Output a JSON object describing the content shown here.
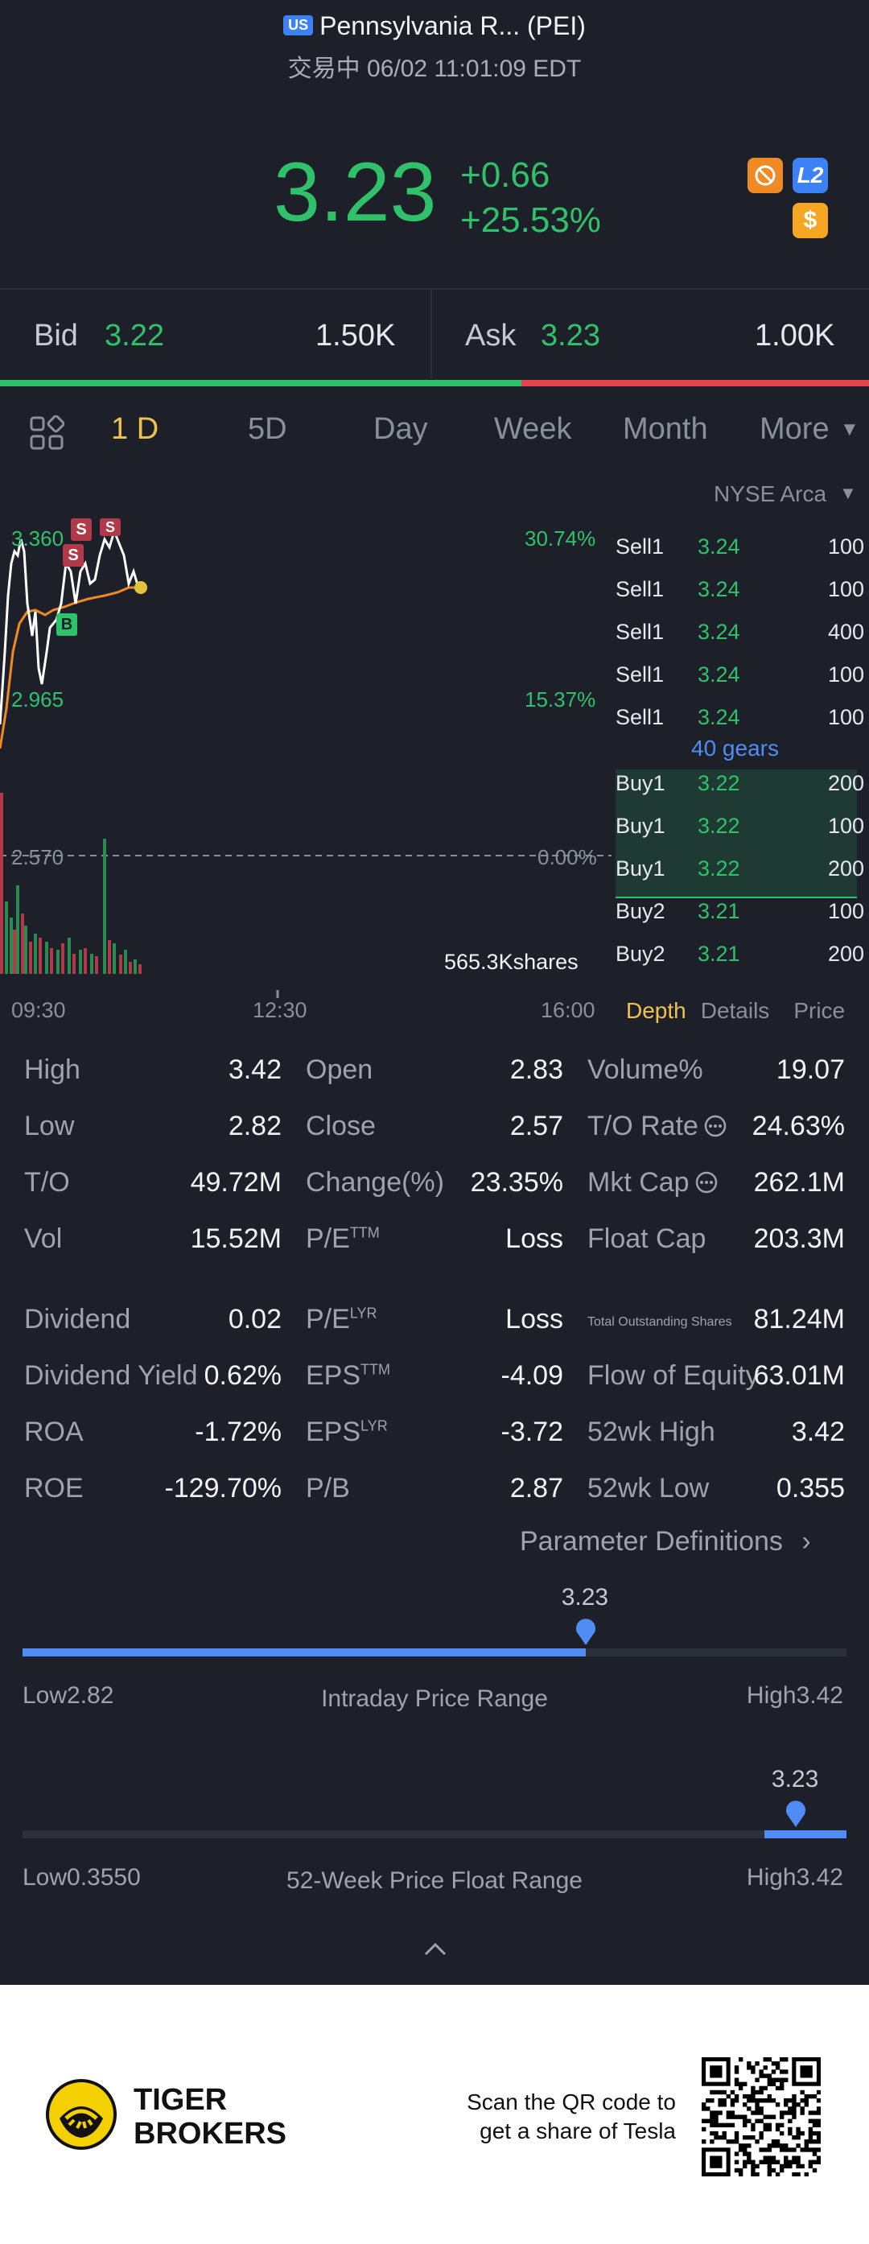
{
  "header": {
    "market_badge": "US",
    "title": "Pennsylvania R... (PEI)",
    "status": "交易中 06/02 11:01:09 EDT"
  },
  "quote": {
    "price": "3.23",
    "change": "+0.66",
    "change_pct": "+25.53%",
    "badge_l2": "L2",
    "badge_dollar": "$"
  },
  "bidask": {
    "bid_label": "Bid",
    "bid_price": "3.22",
    "bid_size": "1.50K",
    "ask_label": "Ask",
    "ask_price": "3.23",
    "ask_size": "1.00K",
    "bid_ratio": 0.6
  },
  "tabs": [
    "1 D",
    "5D",
    "Day",
    "Week",
    "Month",
    "More"
  ],
  "chart": {
    "exchange": "NYSE Arca",
    "left_labels": {
      "high": "3.360",
      "mid": "2.965",
      "prev": "2.570"
    },
    "right_labels": {
      "high": "30.74%",
      "mid": "15.37%",
      "zero": "0.00%"
    },
    "volume_label": "565.3Kshares",
    "times": [
      "09:30",
      "12:30",
      "16:00"
    ],
    "markers": {
      "sell": "S",
      "buy": "B"
    }
  },
  "order_book": {
    "sells": [
      {
        "label": "Sell1",
        "price": "3.24",
        "qty": "100"
      },
      {
        "label": "Sell1",
        "price": "3.24",
        "qty": "100"
      },
      {
        "label": "Sell1",
        "price": "3.24",
        "qty": "400"
      },
      {
        "label": "Sell1",
        "price": "3.24",
        "qty": "100"
      },
      {
        "label": "Sell1",
        "price": "3.24",
        "qty": "100"
      }
    ],
    "gears": "40 gears",
    "buys": [
      {
        "label": "Buy1",
        "price": "3.22",
        "qty": "200"
      },
      {
        "label": "Buy1",
        "price": "3.22",
        "qty": "100"
      },
      {
        "label": "Buy1",
        "price": "3.22",
        "qty": "200"
      },
      {
        "label": "Buy2",
        "price": "3.21",
        "qty": "100"
      },
      {
        "label": "Buy2",
        "price": "3.21",
        "qty": "200"
      }
    ],
    "tabs": [
      "Depth",
      "Details",
      "Price"
    ]
  },
  "stats": [
    [
      {
        "l": "High",
        "v": "3.42"
      },
      {
        "l": "Open",
        "v": "2.83"
      },
      {
        "l": "Volume%",
        "v": "19.07"
      }
    ],
    [
      {
        "l": "Low",
        "v": "2.82"
      },
      {
        "l": "Close",
        "v": "2.57"
      },
      {
        "l": "T/O Rate",
        "v": "24.63%"
      }
    ],
    [
      {
        "l": "T/O",
        "v": "49.72M"
      },
      {
        "l": "Change(%)",
        "v": "23.35%"
      },
      {
        "l": "Mkt Cap",
        "v": "262.1M"
      }
    ],
    [
      {
        "l": "Vol",
        "v": "15.52M"
      },
      {
        "l": "P/E",
        "sup": "TTM",
        "v": "Loss"
      },
      {
        "l": "Float Cap",
        "v": "203.3M"
      }
    ],
    [
      {
        "l": "Dividend",
        "v": "0.02"
      },
      {
        "l": "P/E",
        "sup": "LYR",
        "v": "Loss"
      },
      {
        "l": "Total Outstanding Shares",
        "v": "81.24M"
      }
    ],
    [
      {
        "l": "Dividend Yield",
        "v": "0.62%"
      },
      {
        "l": "EPS",
        "sup": "TTM",
        "v": "-4.09"
      },
      {
        "l": "Flow of Equity",
        "v": "63.01M"
      }
    ],
    [
      {
        "l": "ROA",
        "v": "-1.72%"
      },
      {
        "l": "EPS",
        "sup": "LYR",
        "v": "-3.72"
      },
      {
        "l": "52wk High",
        "v": "3.42"
      }
    ],
    [
      {
        "l": "ROE",
        "v": "-129.70%"
      },
      {
        "l": "P/B",
        "v": "2.87"
      },
      {
        "l": "52wk Low",
        "v": "0.355"
      }
    ]
  ],
  "param_link": "Parameter Definitions",
  "intraday_range": {
    "current": "3.23",
    "low_label": "Low2.82",
    "title": "Intraday Price Range",
    "high_label": "High3.42",
    "position": 0.6833
  },
  "week52_range": {
    "current": "3.23",
    "low_label": "Low0.3550",
    "title": "52-Week Price Float Range",
    "high_label": "High3.42",
    "position": 0.9384
  },
  "footer": {
    "brand_line1": "TIGER",
    "brand_line2": "BROKERS",
    "cta_line1": "Scan the QR code to",
    "cta_line2": "get a share of Tesla"
  }
}
